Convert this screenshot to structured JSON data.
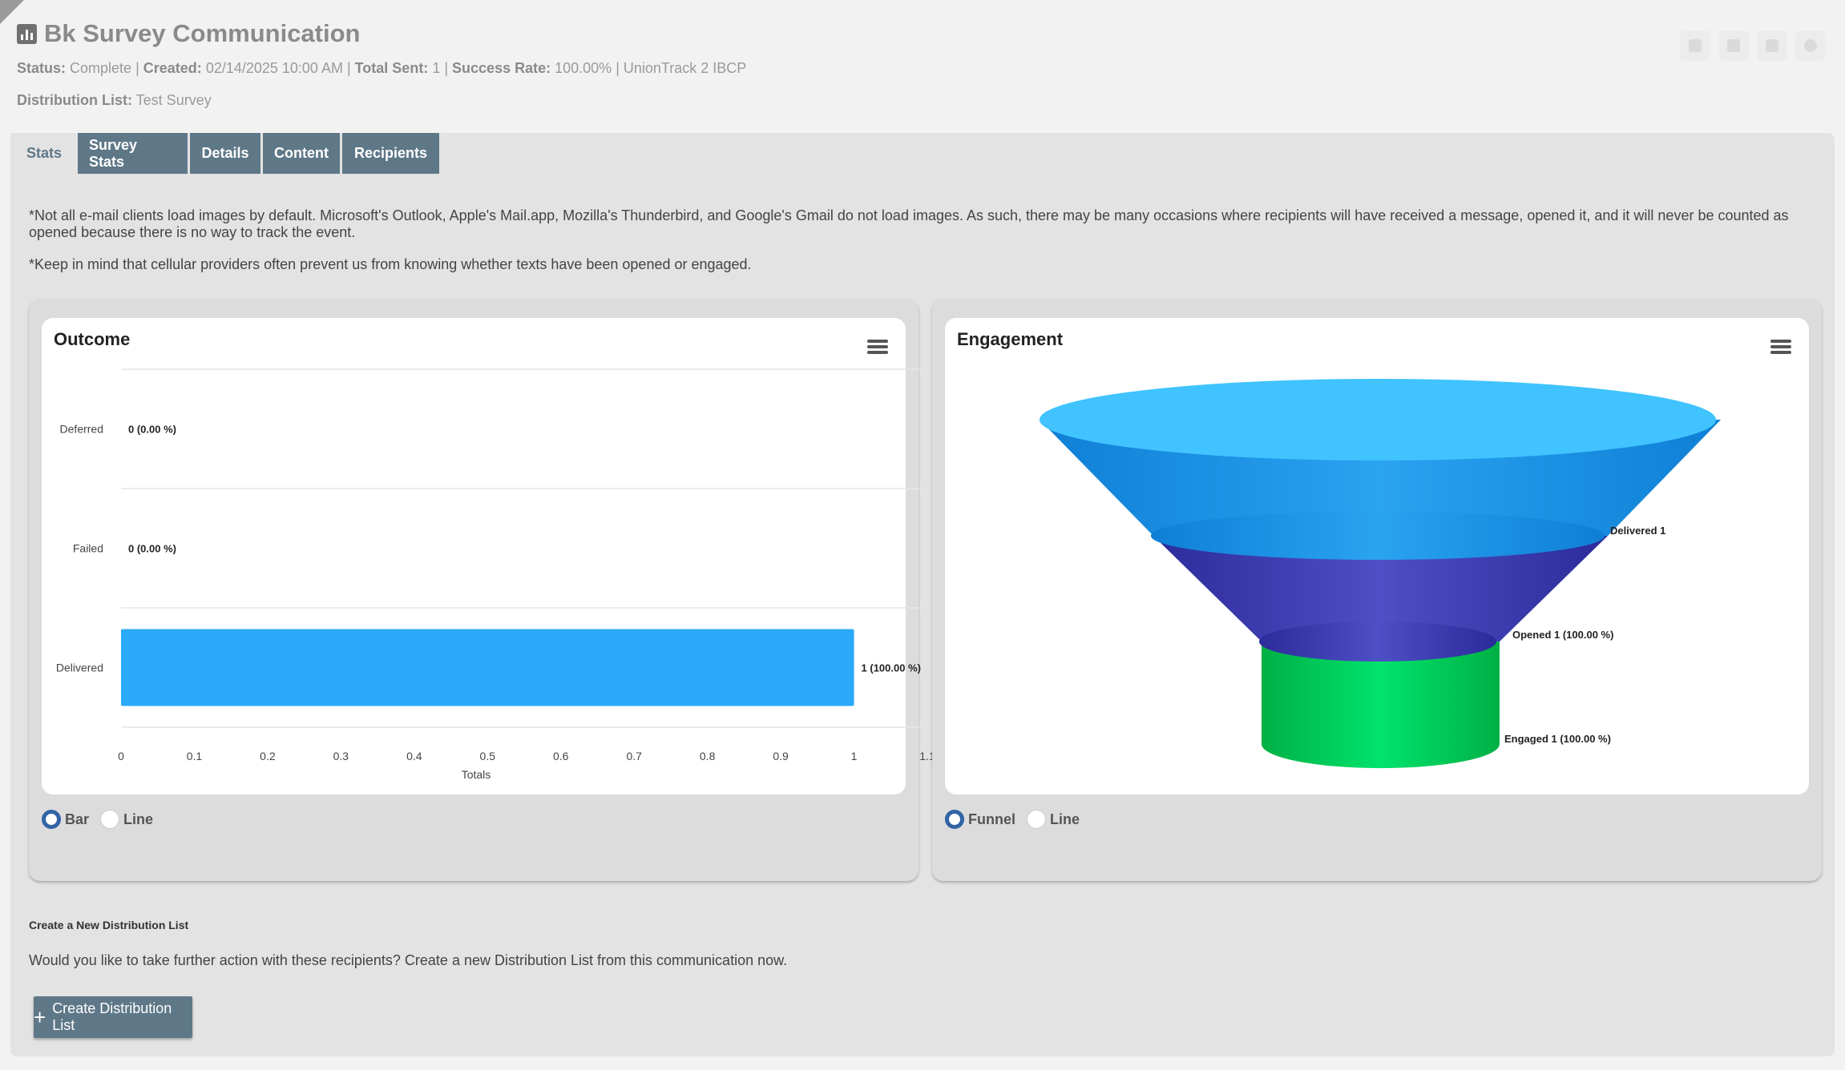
{
  "header": {
    "title": "Bk Survey Communication",
    "status_label": "Status:",
    "status_value": "Complete",
    "created_label": "Created:",
    "created_value": "02/14/2025 10:00 AM",
    "total_sent_label": "Total Sent:",
    "total_sent_value": "1",
    "success_rate_label": "Success Rate:",
    "success_rate_value": "100.00%",
    "organization": "UnionTrack 2 IBCP",
    "distribution_label": "Distribution List:",
    "distribution_value": "Test Survey",
    "toolbar_icons": [
      "copy-icon",
      "archive-icon",
      "edit-icon",
      "help-icon"
    ]
  },
  "tabs": [
    {
      "label": "Stats",
      "active": true
    },
    {
      "label": "Survey Stats",
      "active": false
    },
    {
      "label": "Details",
      "active": false
    },
    {
      "label": "Content",
      "active": false
    },
    {
      "label": "Recipients",
      "active": false
    }
  ],
  "notes": {
    "email": "*Not all e-mail clients load images by default. Microsoft's Outlook, Apple's Mail.app, Mozilla's Thunderbird, and Google's Gmail do not load images. As such, there may be many occasions where recipients will have received a message, opened it, and it will never be counted as opened because there is no way to track the event.",
    "sms": "*Keep in mind that cellular providers often prevent us from knowing whether texts have been opened or engaged."
  },
  "outcome": {
    "title": "Outcome",
    "radio_options": [
      {
        "label": "Bar",
        "selected": true
      },
      {
        "label": "Line",
        "selected": false
      }
    ]
  },
  "engagement": {
    "title": "Engagement",
    "radio_options": [
      {
        "label": "Funnel",
        "selected": true
      },
      {
        "label": "Line",
        "selected": false
      }
    ]
  },
  "chart_data": [
    {
      "type": "bar",
      "title": "Outcome",
      "orientation": "horizontal",
      "categories": [
        "Deferred",
        "Failed",
        "Delivered"
      ],
      "values": [
        0,
        0,
        1
      ],
      "data_labels": [
        "0 (0.00 %)",
        "0 (0.00 %)",
        "1 (100.00 %)"
      ],
      "xlabel": "Totals",
      "xlim": [
        0,
        1.1
      ],
      "xticks": [
        "0",
        "0.1",
        "0.2",
        "0.3",
        "0.4",
        "0.5",
        "0.6",
        "0.7",
        "0.8",
        "0.9",
        "1",
        "1.1"
      ],
      "color": "#2aaaf8",
      "grid": true
    },
    {
      "type": "funnel",
      "title": "Engagement",
      "categories": [
        "Delivered",
        "Opened",
        "Engaged"
      ],
      "values": [
        1,
        1,
        1
      ],
      "data_labels": [
        "Delivered 1",
        "Opened 1 (100.00 %)",
        "Engaged 1 (100.00 %)"
      ],
      "colors": [
        "#1e9be8",
        "#4343b8",
        "#00c853"
      ]
    }
  ],
  "create_section": {
    "title": "Create a New Distribution List",
    "text": "Would you like to take further action with these recipients? Create a new Distribution List from this communication now.",
    "button_label": "Create Distribution List"
  }
}
